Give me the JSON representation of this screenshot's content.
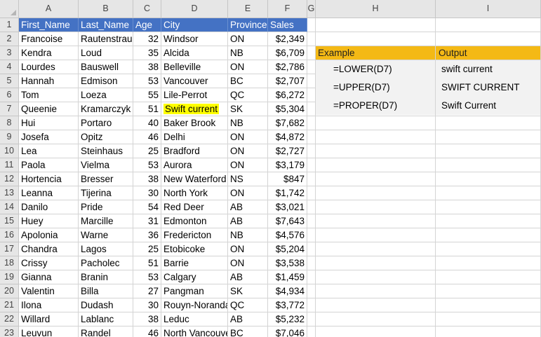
{
  "sheet": {
    "column_letters": [
      "A",
      "B",
      "C",
      "D",
      "E",
      "F",
      "G",
      "H",
      "I"
    ],
    "headers": [
      "First_Name",
      "Last_Name",
      "Age",
      "City",
      "Province",
      "Sales"
    ],
    "rows": [
      [
        "Francoise",
        "Rautenstrau",
        "32",
        "Windsor",
        "ON",
        "$2,349"
      ],
      [
        "Kendra",
        "Loud",
        "35",
        "Alcida",
        "NB",
        "$6,709"
      ],
      [
        "Lourdes",
        "Bauswell",
        "38",
        "Belleville",
        "ON",
        "$2,786"
      ],
      [
        "Hannah",
        "Edmison",
        "53",
        "Vancouver",
        "BC",
        "$2,707"
      ],
      [
        "Tom",
        "Loeza",
        "55",
        "Lile-Perrot",
        "QC",
        "$6,272"
      ],
      [
        "Queenie",
        "Kramarczyk",
        "51",
        "Swift current",
        "SK",
        "$5,304"
      ],
      [
        "Hui",
        "Portaro",
        "40",
        "Baker Brook",
        "NB",
        "$7,682"
      ],
      [
        "Josefa",
        "Opitz",
        "46",
        "Delhi",
        "ON",
        "$4,872"
      ],
      [
        "Lea",
        "Steinhaus",
        "25",
        "Bradford",
        "ON",
        "$2,727"
      ],
      [
        "Paola",
        "Vielma",
        "53",
        "Aurora",
        "ON",
        "$3,179"
      ],
      [
        "Hortencia",
        "Bresser",
        "38",
        "New Waterford",
        "NS",
        "$847"
      ],
      [
        "Leanna",
        "Tijerina",
        "30",
        "North York",
        "ON",
        "$1,742"
      ],
      [
        "Danilo",
        "Pride",
        "54",
        "Red Deer",
        "AB",
        "$3,021"
      ],
      [
        "Huey",
        "Marcille",
        "31",
        "Edmonton",
        "AB",
        "$7,643"
      ],
      [
        "Apolonia",
        "Warne",
        "36",
        "Fredericton",
        "NB",
        "$4,576"
      ],
      [
        "Chandra",
        "Lagos",
        "25",
        "Etobicoke",
        "ON",
        "$5,204"
      ],
      [
        "Crissy",
        "Pacholec",
        "51",
        "Barrie",
        "ON",
        "$3,538"
      ],
      [
        "Gianna",
        "Branin",
        "53",
        "Calgary",
        "AB",
        "$1,459"
      ],
      [
        "Valentin",
        "Billa",
        "27",
        "Pangman",
        "SK",
        "$4,934"
      ],
      [
        "Ilona",
        "Dudash",
        "30",
        "Rouyn-Noranda",
        "QC",
        "$3,772"
      ],
      [
        "Willard",
        "Lablanc",
        "38",
        "Leduc",
        "AB",
        "$5,232"
      ],
      [
        "Leuvun",
        "Randel",
        "46",
        "North Vancouver",
        "BC",
        "$7,046"
      ]
    ],
    "highlighted_cell": "D7"
  },
  "example": {
    "header_example": "Example",
    "header_output": "Output",
    "rows": [
      {
        "formula": "=LOWER(D7)",
        "output": "swift current"
      },
      {
        "formula": "=UPPER(D7)",
        "output": "SWIFT CURRENT"
      },
      {
        "formula": "=PROPER(D7)",
        "output": "Swift Current"
      }
    ]
  },
  "colors": {
    "table_header": "#4472c4",
    "example_header": "#f4b915",
    "highlight": "#ffff00",
    "example_fill": "#f2f2f2"
  }
}
